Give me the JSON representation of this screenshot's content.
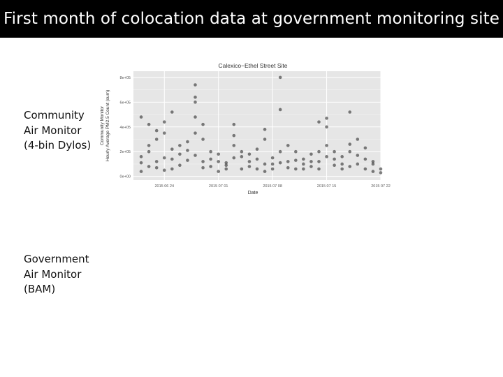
{
  "slide": {
    "title": "First month of colocation data at government monitoring site",
    "labels": {
      "community": [
        "Community",
        "Air Monitor",
        "(4-bin Dylos)"
      ],
      "government": [
        "Government",
        "Air Monitor",
        "(BAM)"
      ]
    }
  },
  "chart_data": {
    "type": "scatter",
    "title": "Calexico−Ethel Street Site",
    "xlabel": "Date",
    "ylabel": [
      "Community Monitor",
      "Hourly Average PM2.5 Count (sum)"
    ],
    "x_ticks": [
      "2015-06-24",
      "2015-07-01",
      "2015-07-08",
      "2015-07-15",
      "2015-07-22"
    ],
    "x_tick_labels": [
      "2015 06 24",
      "2015 07 01",
      "2015 07 08",
      "2015 07 15",
      "2015 07 22"
    ],
    "xlim": [
      "2015-06-20",
      "2015-07-22"
    ],
    "y_ticks": [
      0,
      200000,
      400000,
      600000,
      800000
    ],
    "y_tick_labels": [
      "0e+00",
      "2e+05",
      "4e+05",
      "6e+05",
      "8e+05"
    ],
    "ylim": [
      -30000,
      850000
    ],
    "grid": true,
    "point_color": "#1a1a1a",
    "panel_color": "#e6e6e6",
    "series": [
      {
        "points": [
          [
            "2015-06-21",
            40000
          ],
          [
            "2015-06-21",
            110000
          ],
          [
            "2015-06-21",
            160000
          ],
          [
            "2015-06-21",
            480000
          ],
          [
            "2015-06-22",
            80000
          ],
          [
            "2015-06-22",
            200000
          ],
          [
            "2015-06-22",
            250000
          ],
          [
            "2015-06-22",
            420000
          ],
          [
            "2015-06-23",
            120000
          ],
          [
            "2015-06-23",
            300000
          ],
          [
            "2015-06-23",
            370000
          ],
          [
            "2015-06-23",
            70000
          ],
          [
            "2015-06-24",
            150000
          ],
          [
            "2015-06-24",
            350000
          ],
          [
            "2015-06-24",
            440000
          ],
          [
            "2015-06-24",
            50000
          ],
          [
            "2015-06-25",
            220000
          ],
          [
            "2015-06-25",
            60000
          ],
          [
            "2015-06-25",
            520000
          ],
          [
            "2015-06-25",
            140000
          ],
          [
            "2015-06-26",
            250000
          ],
          [
            "2015-06-26",
            180000
          ],
          [
            "2015-06-26",
            90000
          ],
          [
            "2015-06-27",
            130000
          ],
          [
            "2015-06-27",
            210000
          ],
          [
            "2015-06-27",
            280000
          ],
          [
            "2015-06-28",
            170000
          ],
          [
            "2015-06-28",
            350000
          ],
          [
            "2015-06-28",
            480000
          ],
          [
            "2015-06-28",
            600000
          ],
          [
            "2015-06-28",
            640000
          ],
          [
            "2015-06-28",
            740000
          ],
          [
            "2015-06-29",
            120000
          ],
          [
            "2015-06-29",
            300000
          ],
          [
            "2015-06-29",
            420000
          ],
          [
            "2015-06-29",
            70000
          ],
          [
            "2015-06-30",
            200000
          ],
          [
            "2015-06-30",
            80000
          ],
          [
            "2015-06-30",
            140000
          ],
          [
            "2015-07-01",
            40000
          ],
          [
            "2015-07-01",
            120000
          ],
          [
            "2015-07-01",
            180000
          ],
          [
            "2015-07-02",
            110000
          ],
          [
            "2015-07-02",
            60000
          ],
          [
            "2015-07-02",
            90000
          ],
          [
            "2015-07-03",
            150000
          ],
          [
            "2015-07-03",
            250000
          ],
          [
            "2015-07-03",
            330000
          ],
          [
            "2015-07-03",
            420000
          ],
          [
            "2015-07-04",
            160000
          ],
          [
            "2015-07-04",
            60000
          ],
          [
            "2015-07-04",
            200000
          ],
          [
            "2015-07-05",
            120000
          ],
          [
            "2015-07-05",
            180000
          ],
          [
            "2015-07-05",
            80000
          ],
          [
            "2015-07-06",
            140000
          ],
          [
            "2015-07-06",
            60000
          ],
          [
            "2015-07-06",
            220000
          ],
          [
            "2015-07-07",
            100000
          ],
          [
            "2015-07-07",
            300000
          ],
          [
            "2015-07-07",
            380000
          ],
          [
            "2015-07-07",
            40000
          ],
          [
            "2015-07-08",
            150000
          ],
          [
            "2015-07-08",
            60000
          ],
          [
            "2015-07-08",
            100000
          ],
          [
            "2015-07-09",
            200000
          ],
          [
            "2015-07-09",
            540000
          ],
          [
            "2015-07-09",
            800000
          ],
          [
            "2015-07-09",
            110000
          ],
          [
            "2015-07-10",
            120000
          ],
          [
            "2015-07-10",
            70000
          ],
          [
            "2015-07-10",
            250000
          ],
          [
            "2015-07-11",
            200000
          ],
          [
            "2015-07-11",
            60000
          ],
          [
            "2015-07-11",
            130000
          ],
          [
            "2015-07-12",
            100000
          ],
          [
            "2015-07-12",
            140000
          ],
          [
            "2015-07-12",
            60000
          ],
          [
            "2015-07-13",
            80000
          ],
          [
            "2015-07-13",
            120000
          ],
          [
            "2015-07-13",
            180000
          ],
          [
            "2015-07-14",
            120000
          ],
          [
            "2015-07-14",
            200000
          ],
          [
            "2015-07-14",
            440000
          ],
          [
            "2015-07-14",
            60000
          ],
          [
            "2015-07-15",
            250000
          ],
          [
            "2015-07-15",
            160000
          ],
          [
            "2015-07-15",
            400000
          ],
          [
            "2015-07-15",
            470000
          ],
          [
            "2015-07-16",
            200000
          ],
          [
            "2015-07-16",
            90000
          ],
          [
            "2015-07-16",
            140000
          ],
          [
            "2015-07-17",
            100000
          ],
          [
            "2015-07-17",
            160000
          ],
          [
            "2015-07-17",
            60000
          ],
          [
            "2015-07-18",
            80000
          ],
          [
            "2015-07-18",
            200000
          ],
          [
            "2015-07-18",
            520000
          ],
          [
            "2015-07-18",
            260000
          ],
          [
            "2015-07-19",
            300000
          ],
          [
            "2015-07-19",
            170000
          ],
          [
            "2015-07-19",
            100000
          ],
          [
            "2015-07-20",
            140000
          ],
          [
            "2015-07-20",
            230000
          ],
          [
            "2015-07-20",
            60000
          ],
          [
            "2015-07-21",
            100000
          ],
          [
            "2015-07-21",
            40000
          ],
          [
            "2015-07-21",
            120000
          ],
          [
            "2015-07-22",
            60000
          ],
          [
            "2015-07-22",
            30000
          ]
        ]
      }
    ]
  }
}
